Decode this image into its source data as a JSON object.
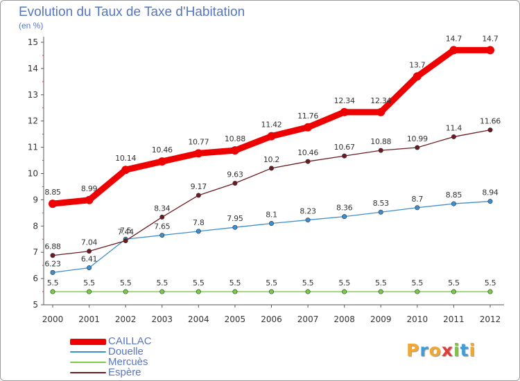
{
  "title": "Evolution du Taux de Taxe d'Habitation",
  "subtitle": "(en %)",
  "brand": {
    "letters": [
      "P",
      "r",
      "o",
      "x",
      "i",
      "t",
      "i"
    ],
    "colors": [
      "#f0a830",
      "#3e9fd8",
      "#f0a830",
      "#e23b3b",
      "#7fc342",
      "#3e9fd8",
      "#f0a830"
    ]
  },
  "chart_data": {
    "type": "line",
    "title": "Evolution du Taux de Taxe d'Habitation",
    "ylabel": "(en %)",
    "x": [
      "2000",
      "2001",
      "2002",
      "2003",
      "2004",
      "2005",
      "2006",
      "2007",
      "2008",
      "2009",
      "2010",
      "2011",
      "2012"
    ],
    "ylim": [
      5,
      15
    ],
    "yticks": [
      5,
      6,
      7,
      8,
      9,
      10,
      11,
      12,
      13,
      14,
      15
    ],
    "grid": false,
    "legend": "bottom-left",
    "series": [
      {
        "name": "CAILLAC",
        "color": "#ee0000",
        "values": [
          8.85,
          8.99,
          10.14,
          10.46,
          10.77,
          10.88,
          11.42,
          11.76,
          12.34,
          12.34,
          13.7,
          14.7,
          14.7
        ],
        "labels": [
          "8.85",
          "8.99",
          "10.14",
          "10.46",
          "10.77",
          "10.88",
          "11.42",
          "11.76",
          "12.34",
          "12.34",
          "13.7",
          "14.7",
          "14.7"
        ]
      },
      {
        "name": "Douelle",
        "color": "#3d8ed1",
        "values": [
          6.23,
          6.41,
          7.5,
          7.65,
          7.8,
          7.95,
          8.1,
          8.23,
          8.36,
          8.53,
          8.7,
          8.85,
          8.94
        ],
        "labels": [
          "6.23",
          "6.41",
          "7.5",
          "7.65",
          "7.8",
          "7.95",
          "8.1",
          "8.23",
          "8.36",
          "8.53",
          "8.7",
          "8.85",
          "8.94"
        ]
      },
      {
        "name": "Mercuès",
        "color": "#77cc44",
        "values": [
          5.5,
          5.5,
          5.5,
          5.5,
          5.5,
          5.5,
          5.5,
          5.5,
          5.5,
          5.5,
          5.5,
          5.5,
          5.5
        ],
        "labels": [
          "5.5",
          "5.5",
          "5.5",
          "5.5",
          "5.5",
          "5.5",
          "5.5",
          "5.5",
          "5.5",
          "5.5",
          "5.5",
          "5.5",
          "5.5"
        ]
      },
      {
        "name": "Espère",
        "color": "#6b1a20",
        "values": [
          6.88,
          7.04,
          7.44,
          8.34,
          9.17,
          9.63,
          10.2,
          10.46,
          10.67,
          10.88,
          10.99,
          11.4,
          11.66
        ],
        "labels": [
          "6.88",
          "7.04",
          "7.44",
          "8.34",
          "9.17",
          "9.63",
          "10.2",
          "10.46",
          "10.67",
          "10.88",
          "10.99",
          "11.4",
          "11.66"
        ]
      }
    ]
  }
}
